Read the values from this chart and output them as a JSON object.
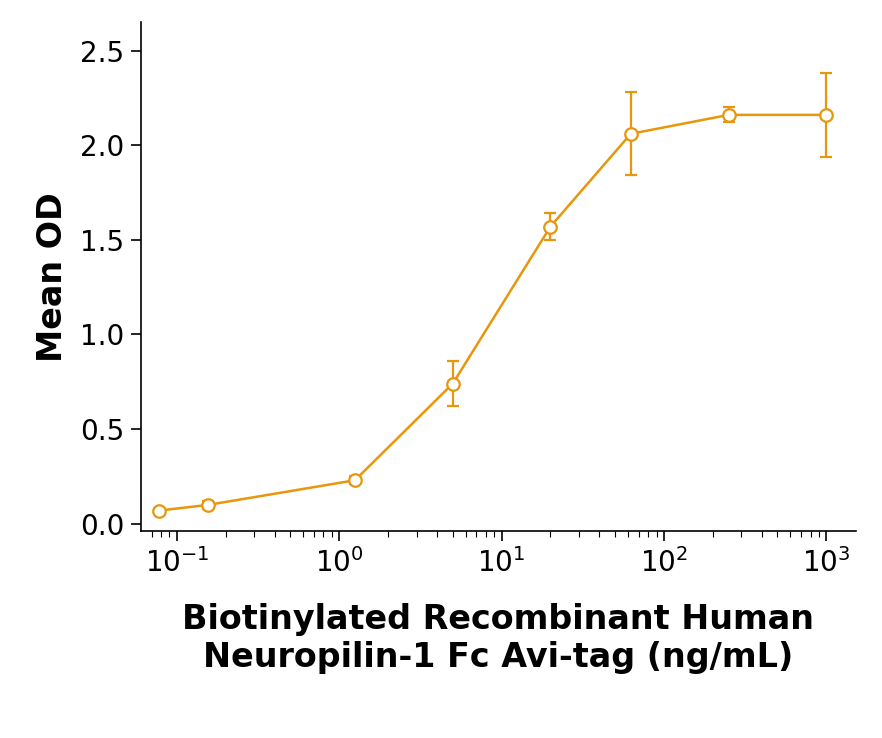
{
  "x_data": [
    0.078125,
    0.15625,
    1.25,
    5.0,
    20.0,
    62.5,
    250.0,
    1000.0
  ],
  "y_data": [
    0.07,
    0.1,
    0.23,
    0.74,
    1.57,
    2.06,
    2.16,
    2.16
  ],
  "y_err": [
    0.01,
    0.02,
    0.02,
    0.12,
    0.07,
    0.22,
    0.04,
    0.22
  ],
  "line_color": "#E8960C",
  "marker_color": "#E8960C",
  "marker_facecolor": "white",
  "ylabel": "Mean OD",
  "xlabel_line1": "Biotinylated Recombinant Human",
  "xlabel_line2": "Neuropilin-1 Fc Avi-tag (ng/mL)",
  "ylim": [
    -0.04,
    2.65
  ],
  "yticks": [
    0.0,
    0.5,
    1.0,
    1.5,
    2.0,
    2.5
  ],
  "background_color": "#ffffff",
  "ylabel_fontsize": 24,
  "xlabel_fontsize": 24,
  "tick_fontsize": 20,
  "line_width": 1.8,
  "marker_size": 9,
  "capsize": 4,
  "elinewidth": 1.6,
  "markeredgewidth": 1.6
}
